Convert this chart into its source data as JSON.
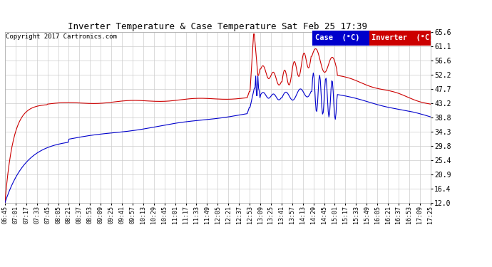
{
  "title": "Inverter Temperature & Case Temperature Sat Feb 25 17:39",
  "copyright": "Copyright 2017 Cartronics.com",
  "background_color": "#ffffff",
  "plot_bg_color": "#ffffff",
  "grid_color": "#cccccc",
  "red_color": "#cc0000",
  "blue_color": "#0000cc",
  "ylim": [
    12.0,
    65.6
  ],
  "yticks": [
    12.0,
    16.4,
    20.9,
    25.4,
    29.8,
    34.3,
    38.8,
    43.2,
    47.7,
    52.2,
    56.6,
    61.1,
    65.6
  ],
  "legend_case_label": "Case  (°C)",
  "legend_inverter_label": "Inverter  (°C)",
  "legend_case_bg": "#0000cc",
  "legend_inverter_bg": "#cc0000",
  "x_labels": [
    "06:45",
    "07:01",
    "07:17",
    "07:33",
    "07:45",
    "08:05",
    "08:21",
    "08:37",
    "08:53",
    "09:09",
    "09:25",
    "09:41",
    "09:57",
    "10:13",
    "10:29",
    "10:45",
    "11:01",
    "11:17",
    "11:33",
    "11:49",
    "12:05",
    "12:21",
    "12:37",
    "12:53",
    "13:09",
    "13:25",
    "13:41",
    "13:57",
    "14:13",
    "14:29",
    "14:45",
    "15:01",
    "15:17",
    "15:33",
    "15:49",
    "16:05",
    "16:21",
    "16:37",
    "16:53",
    "17:09",
    "17:25"
  ],
  "n_points": 600
}
